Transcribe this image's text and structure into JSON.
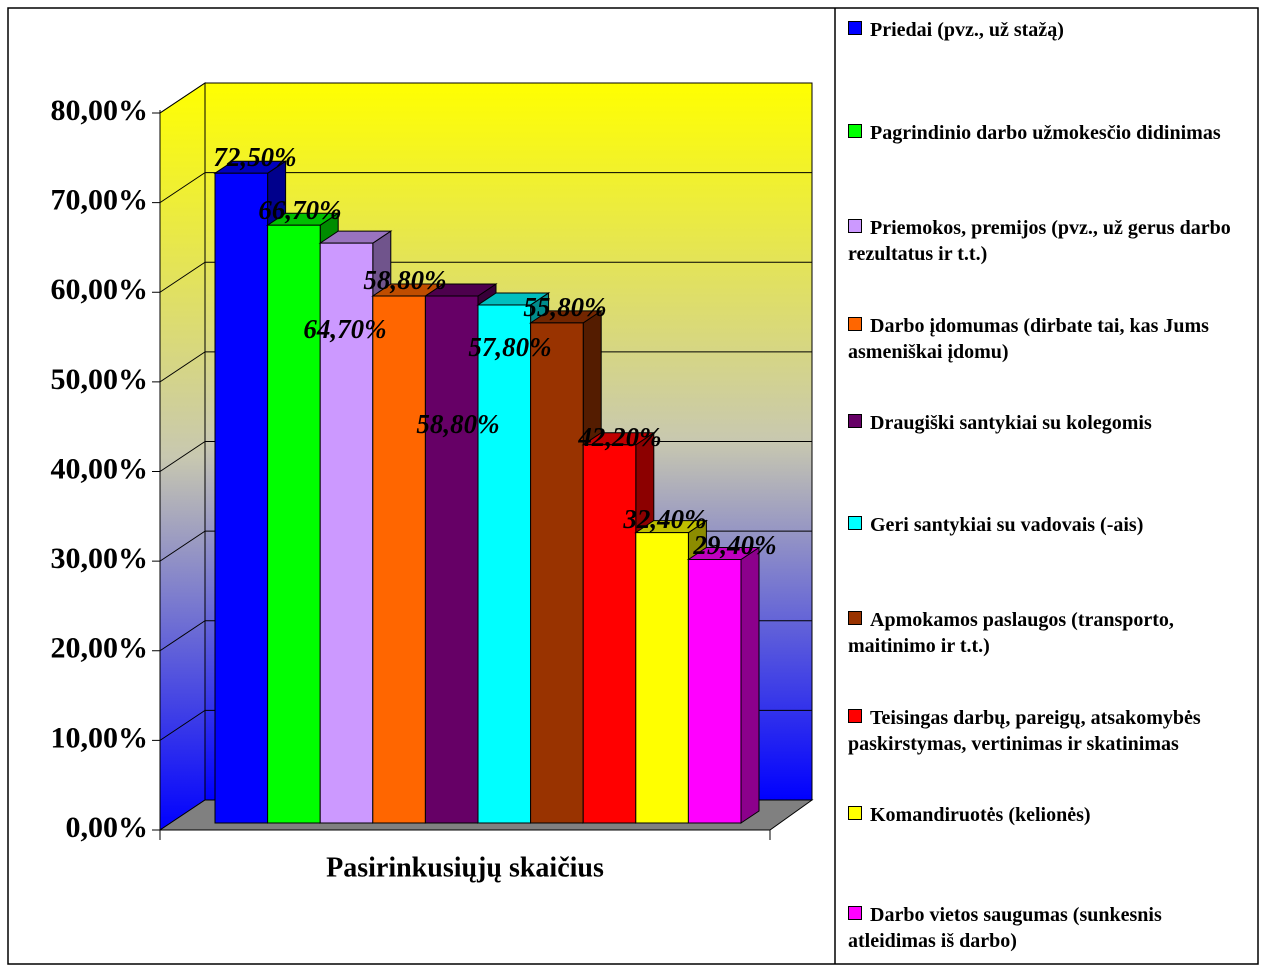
{
  "chart_data": {
    "type": "bar3d",
    "categories": [
      "Pasirinkusiųjų skaičius"
    ],
    "ylim": [
      0,
      80
    ],
    "yticks": [
      {
        "value": 0,
        "label": "0,00%"
      },
      {
        "value": 10,
        "label": "10,00%"
      },
      {
        "value": 20,
        "label": "20,00%"
      },
      {
        "value": 30,
        "label": "30,00%"
      },
      {
        "value": 40,
        "label": "40,00%"
      },
      {
        "value": 50,
        "label": "50,00%"
      },
      {
        "value": 60,
        "label": "60,00%"
      },
      {
        "value": 70,
        "label": "70,00%"
      },
      {
        "value": 80,
        "label": "80,00%"
      }
    ],
    "grid": true,
    "legend": "right",
    "series": [
      {
        "name": "Priedai (pvz., už stažą)",
        "color": "#0000ff",
        "values": [
          72.5
        ],
        "value_labels": [
          "72,50%"
        ]
      },
      {
        "name": "Pagrindinio darbo užmokesčio didinimas",
        "color": "#00ff00",
        "values": [
          66.7
        ],
        "value_labels": [
          "66,70%"
        ]
      },
      {
        "name": "Priemokos, premijos (pvz., už gerus darbo rezultatus ir t.t.)",
        "color": "#cc99ff",
        "values": [
          64.7
        ],
        "value_labels": [
          "64,70%"
        ]
      },
      {
        "name": "Darbo įdomumas (dirbate tai, kas Jums asmeniškai įdomu)",
        "color": "#ff6600",
        "values": [
          58.8
        ],
        "value_labels": [
          "58,80%"
        ]
      },
      {
        "name": "Draugiški santykiai su kolegomis",
        "color": "#660066",
        "values": [
          58.8
        ],
        "value_labels": [
          "58,80%"
        ]
      },
      {
        "name": "Geri santykiai su vadovais (-ais)",
        "color": "#00ffff",
        "values": [
          57.8
        ],
        "value_labels": [
          "57,80%"
        ]
      },
      {
        "name": "Apmokamos paslaugos (transporto, maitinimo ir t.t.)",
        "color": "#993300",
        "values": [
          55.8
        ],
        "value_labels": [
          "55,80%"
        ]
      },
      {
        "name": "Teisingas darbų, pareigų, atsakomybės paskirstymas, vertinimas ir skatinimas",
        "color": "#ff0000",
        "values": [
          42.2
        ],
        "value_labels": [
          "42,20%"
        ]
      },
      {
        "name": "Komandiruotės (kelionės)",
        "color": "#ffff00",
        "values": [
          32.4
        ],
        "value_labels": [
          "32,40%"
        ]
      },
      {
        "name": "Darbo vietos saugumas (sunkesnis atleidimas iš darbo)",
        "color": "#ff00ff",
        "values": [
          29.4
        ],
        "value_labels": [
          "29,40%"
        ]
      }
    ]
  }
}
